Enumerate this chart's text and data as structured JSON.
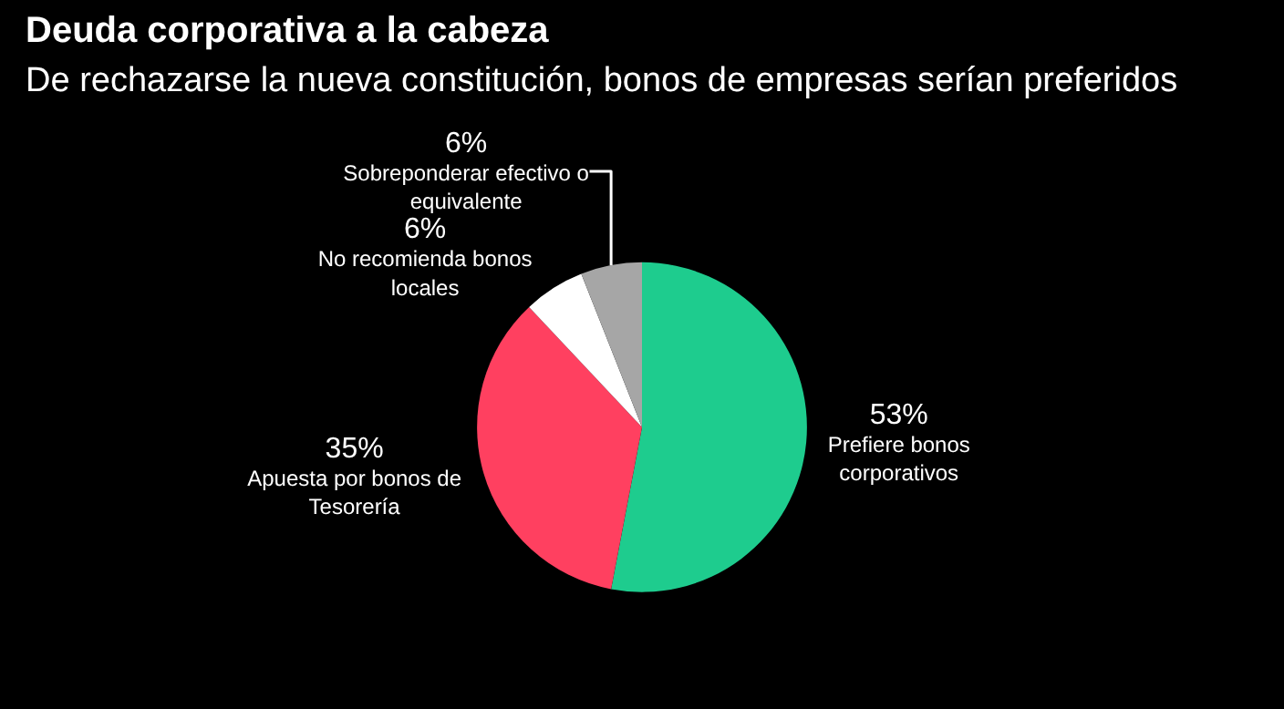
{
  "chart_data": {
    "type": "pie",
    "title": "Deuda corporativa a la cabeza",
    "subtitle": "De rechazarse la nueva constitución, bonos de empresas serían preferidos",
    "categories": [
      "Prefiere bonos corporativos",
      "Apuesta por bonos de Tesorería",
      "No recomienda bonos locales",
      "Sobreponderar efectivo o equivalente"
    ],
    "values": [
      53,
      35,
      6,
      6
    ],
    "colors": [
      "#1ecc8e",
      "#ff4060",
      "#ffffff",
      "#a6a6a6"
    ],
    "value_labels": [
      "53%",
      "35%",
      "6%",
      "6%"
    ]
  }
}
